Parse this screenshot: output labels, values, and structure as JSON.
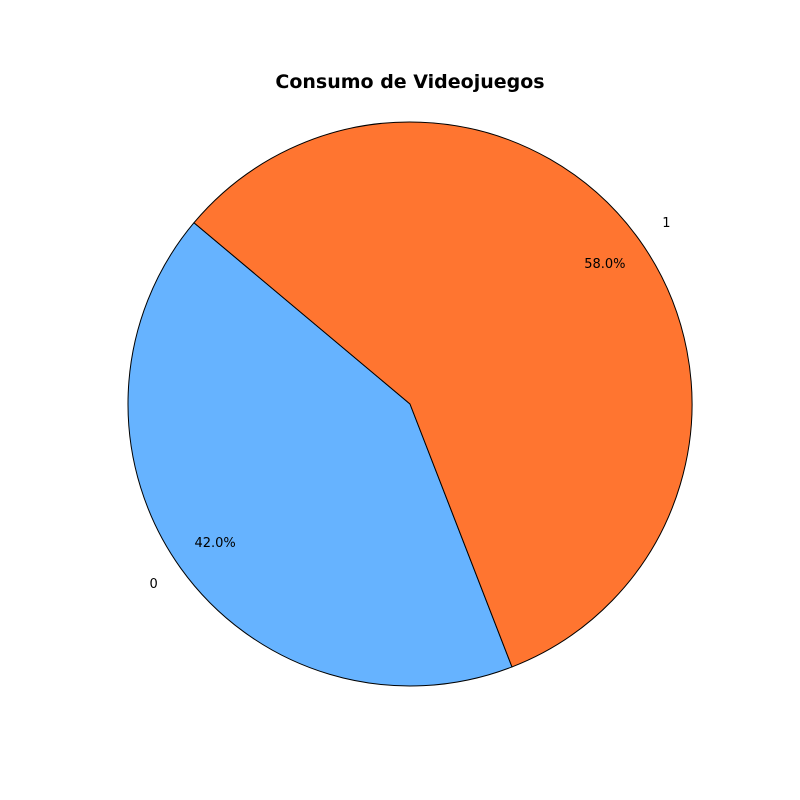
{
  "chart_data": {
    "type": "pie",
    "title": "Consumo de Videojuegos",
    "categories": [
      "0",
      "1"
    ],
    "values": [
      42.0,
      58.0
    ],
    "percent_labels": [
      "42.0%",
      "58.0%"
    ],
    "colors": [
      "#66b3ff",
      "#ff7530"
    ],
    "edge_color": "#000000",
    "start_angle_deg": 140,
    "direction": "counterclockwise"
  }
}
